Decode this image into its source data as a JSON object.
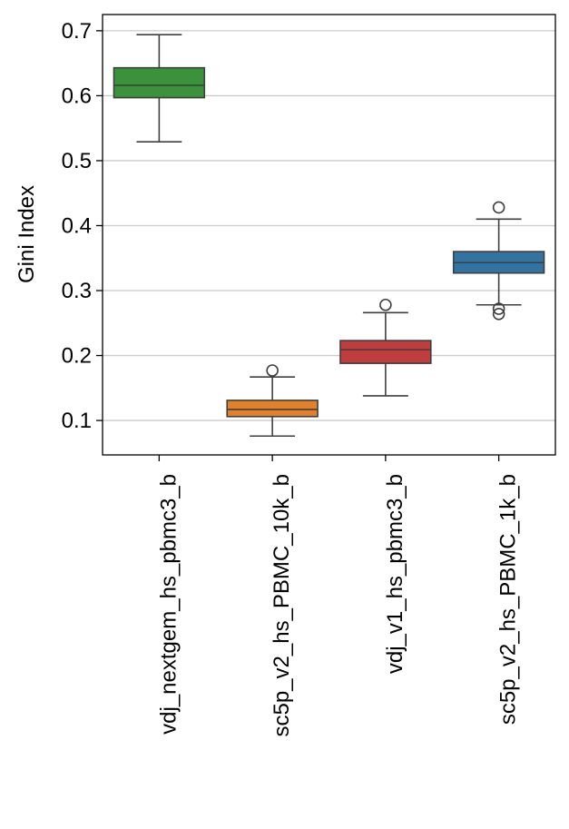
{
  "chart_data": {
    "type": "box",
    "y_label": "Gini Index",
    "categories": [
      "vdj_nextgem_hs_pbmc3_b",
      "sc5p_v2_hs_PBMC_10k_b",
      "vdj_v1_hs_pbmc3_b",
      "sc5p_v2_hs_PBMC_1k_b"
    ],
    "boxes": [
      {
        "color": "#3a923a",
        "whisker_low": 0.529,
        "q1": 0.597,
        "median": 0.616,
        "q3": 0.643,
        "whisker_high": 0.694,
        "outliers": []
      },
      {
        "color": "#e1812c",
        "whisker_low": 0.076,
        "q1": 0.106,
        "median": 0.117,
        "q3": 0.131,
        "whisker_high": 0.167,
        "outliers": [
          0.177
        ]
      },
      {
        "color": "#c03d3e",
        "whisker_low": 0.138,
        "q1": 0.188,
        "median": 0.209,
        "q3": 0.223,
        "whisker_high": 0.266,
        "outliers": [
          0.278
        ]
      },
      {
        "color": "#3274a1",
        "whisker_low": 0.278,
        "q1": 0.327,
        "median": 0.343,
        "q3": 0.36,
        "whisker_high": 0.41,
        "outliers": [
          0.428,
          0.272,
          0.264
        ]
      }
    ],
    "ylim": [
      0.047,
      0.725
    ],
    "yticks": [
      0.1,
      0.2,
      0.3,
      0.4,
      0.5,
      0.6,
      0.7
    ],
    "grid": true
  }
}
